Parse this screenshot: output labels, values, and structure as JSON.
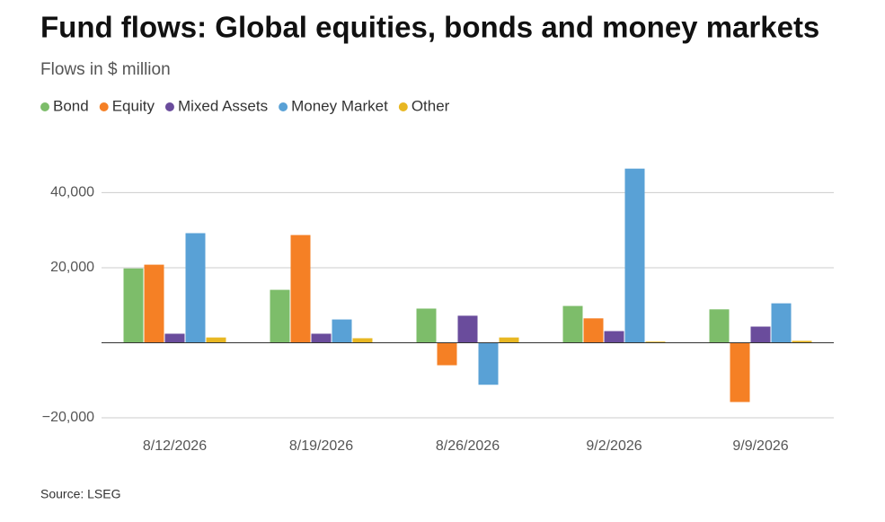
{
  "chart_data": {
    "type": "bar",
    "title": "Fund flows: Global equities, bonds and money markets",
    "subtitle": "Flows in $ million",
    "source": "Source: LSEG",
    "categories": [
      "8/12/2026",
      "8/19/2026",
      "8/26/2026",
      "9/2/2026",
      "9/9/2026"
    ],
    "series": [
      {
        "name": "Bond",
        "color": "#7dbd6a",
        "values": [
          19800,
          14100,
          9100,
          9800,
          8900
        ]
      },
      {
        "name": "Equity",
        "color": "#f58025",
        "values": [
          20800,
          28700,
          -6000,
          6500,
          -15800
        ]
      },
      {
        "name": "Mixed Assets",
        "color": "#6a4c9c",
        "values": [
          2400,
          2400,
          7200,
          3100,
          4300
        ]
      },
      {
        "name": "Money Market",
        "color": "#59a1d6",
        "values": [
          29200,
          6200,
          -11200,
          46400,
          10500
        ]
      },
      {
        "name": "Other",
        "color": "#e8b722",
        "values": [
          1400,
          1200,
          1400,
          300,
          500
        ]
      }
    ],
    "ylim": [
      -20000,
      48000
    ],
    "yticks": [
      {
        "value": -20000,
        "label": "−20,000"
      },
      {
        "value": 20000,
        "label": "20,000"
      },
      {
        "value": 40000,
        "label": "40,000"
      }
    ],
    "grid": true,
    "legend": "top"
  }
}
